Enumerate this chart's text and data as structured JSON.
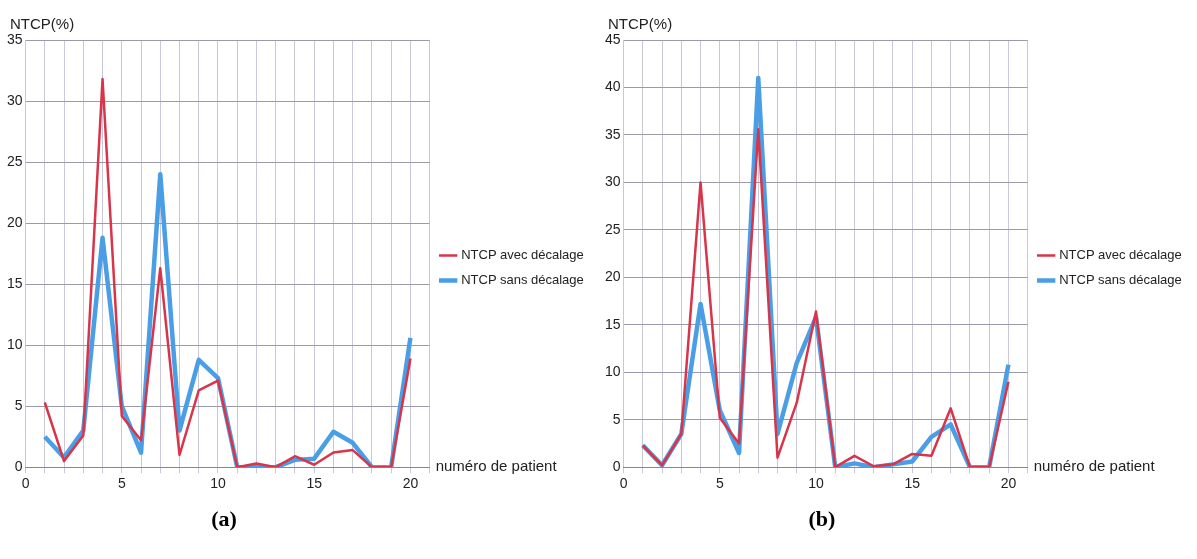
{
  "chart_data": [
    {
      "type": "line",
      "ylabel": "NTCP(%)",
      "xlabel": "numéro de patient",
      "annotations": [
        "(a)"
      ],
      "x": [
        1,
        2,
        3,
        4,
        5,
        6,
        7,
        8,
        9,
        10,
        11,
        12,
        13,
        14,
        15,
        16,
        17,
        18,
        19,
        20
      ],
      "series": [
        {
          "name": "NTCP sans décalage",
          "color": "#4a9ee6",
          "values": [
            2.5,
            0.8,
            3,
            18.8,
            5,
            1.2,
            24,
            3,
            8.8,
            7.3,
            0,
            0,
            0,
            0.6,
            0.7,
            2.9,
            2,
            0,
            0,
            10.6
          ]
        },
        {
          "name": "NTCP avec décalage",
          "color": "#d8344a",
          "values": [
            5.3,
            0.5,
            2.6,
            31.8,
            4.2,
            2.2,
            16.3,
            1,
            6.3,
            7.1,
            0,
            0.3,
            0,
            0.9,
            0.2,
            1.2,
            1.4,
            0,
            0,
            8.9
          ]
        }
      ],
      "xlim": [
        0,
        21
      ],
      "xticks": [
        0,
        {
          "value": 1,
          "label": null
        },
        {
          "value": 2,
          "label": null
        },
        {
          "value": 3,
          "label": null
        },
        {
          "value": 4,
          "label": null
        },
        5,
        {
          "value": 6,
          "label": null
        },
        {
          "value": 7,
          "label": null
        },
        {
          "value": 8,
          "label": null
        },
        {
          "value": 9,
          "label": null
        },
        10,
        {
          "value": 11,
          "label": null
        },
        {
          "value": 12,
          "label": null
        },
        {
          "value": 13,
          "label": null
        },
        {
          "value": 14,
          "label": null
        },
        15,
        {
          "value": 16,
          "label": null
        },
        {
          "value": 17,
          "label": null
        },
        {
          "value": 18,
          "label": null
        },
        {
          "value": 19,
          "label": null
        },
        20,
        {
          "value": 21,
          "label": null
        }
      ],
      "ylim": [
        0,
        35
      ],
      "yticks": [
        0,
        5,
        10,
        15,
        20,
        25,
        30,
        35
      ],
      "grid": true,
      "legend": "right",
      "marker": "none",
      "line_style": "solid"
    },
    {
      "type": "line",
      "ylabel": "NTCP(%)",
      "xlabel": "numéro de patient",
      "annotations": [
        "(b)"
      ],
      "x": [
        1,
        2,
        3,
        4,
        5,
        6,
        7,
        8,
        9,
        10,
        11,
        12,
        13,
        14,
        15,
        16,
        17,
        18,
        19,
        20
      ],
      "series": [
        {
          "name": "NTCP sans décalage",
          "color": "#4a9ee6",
          "values": [
            2.3,
            0.2,
            3.5,
            17.2,
            6,
            1.5,
            41,
            3.5,
            11,
            15.8,
            0,
            0.4,
            0,
            0.3,
            0.6,
            3.2,
            4.5,
            0,
            0,
            10.8
          ]
        },
        {
          "name": "NTCP avec décalage",
          "color": "#d8344a",
          "values": [
            2.3,
            0.2,
            3.5,
            30,
            5.2,
            2.5,
            35.6,
            1,
            6.8,
            16.4,
            0,
            1.2,
            0.1,
            0.3,
            1.4,
            1.2,
            6.2,
            0,
            0,
            9
          ]
        }
      ],
      "xlim": [
        0,
        21
      ],
      "xticks": [
        0,
        {
          "value": 1,
          "label": null
        },
        {
          "value": 2,
          "label": null
        },
        {
          "value": 3,
          "label": null
        },
        {
          "value": 4,
          "label": null
        },
        5,
        {
          "value": 6,
          "label": null
        },
        {
          "value": 7,
          "label": null
        },
        {
          "value": 8,
          "label": null
        },
        {
          "value": 9,
          "label": null
        },
        10,
        {
          "value": 11,
          "label": null
        },
        {
          "value": 12,
          "label": null
        },
        {
          "value": 13,
          "label": null
        },
        {
          "value": 14,
          "label": null
        },
        15,
        {
          "value": 16,
          "label": null
        },
        {
          "value": 17,
          "label": null
        },
        {
          "value": 18,
          "label": null
        },
        {
          "value": 19,
          "label": null
        },
        20,
        {
          "value": 21,
          "label": null
        }
      ],
      "ylim": [
        0,
        45
      ],
      "yticks": [
        0,
        5,
        10,
        15,
        20,
        25,
        30,
        35,
        40,
        45
      ],
      "grid": true,
      "legend": "right",
      "marker": "none",
      "line_style": "solid"
    }
  ]
}
